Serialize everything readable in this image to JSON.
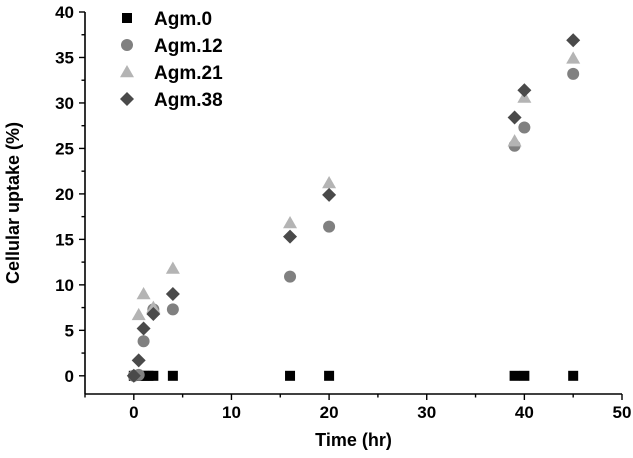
{
  "chart_data": {
    "type": "scatter",
    "xlabel": "Time (hr)",
    "ylabel": "Cellular uptake (%)",
    "xlim": [
      -5,
      50
    ],
    "ylim": [
      -2,
      40
    ],
    "xticks": [
      0,
      10,
      20,
      30,
      40,
      50
    ],
    "yticks": [
      0,
      5,
      10,
      15,
      20,
      25,
      30,
      35,
      40
    ],
    "legend_position": "top-left",
    "grid": false,
    "series": [
      {
        "name": "Agm.0",
        "marker": "square",
        "color": "#000000",
        "points": [
          [
            0,
            0
          ],
          [
            0.5,
            0
          ],
          [
            1,
            0
          ],
          [
            1.5,
            0
          ],
          [
            2,
            0
          ],
          [
            4,
            0
          ],
          [
            16,
            0
          ],
          [
            20,
            0
          ],
          [
            39,
            0
          ],
          [
            40,
            0
          ],
          [
            45,
            0
          ]
        ]
      },
      {
        "name": "Agm.12",
        "marker": "circle",
        "color": "#808080",
        "points": [
          [
            0,
            0
          ],
          [
            0.5,
            0.1
          ],
          [
            1,
            3.8
          ],
          [
            2,
            7.3
          ],
          [
            4,
            7.3
          ],
          [
            16,
            10.9
          ],
          [
            20,
            16.4
          ],
          [
            39,
            25.3
          ],
          [
            40,
            27.3
          ],
          [
            45,
            33.2
          ]
        ]
      },
      {
        "name": "Agm.21",
        "marker": "triangle",
        "color": "#b4b4b4",
        "points": [
          [
            0.5,
            6.7
          ],
          [
            1,
            9.0
          ],
          [
            2,
            7.5
          ],
          [
            4,
            11.8
          ],
          [
            16,
            16.8
          ],
          [
            20,
            21.2
          ],
          [
            39,
            25.8
          ],
          [
            40,
            30.6
          ],
          [
            45,
            34.9
          ]
        ]
      },
      {
        "name": "Agm.38",
        "marker": "diamond",
        "color": "#4a4a4a",
        "points": [
          [
            0,
            0
          ],
          [
            0.5,
            1.7
          ],
          [
            1,
            5.2
          ],
          [
            2,
            6.8
          ],
          [
            4,
            9.0
          ],
          [
            16,
            15.3
          ],
          [
            20,
            19.9
          ],
          [
            39,
            28.4
          ],
          [
            40,
            31.4
          ],
          [
            45,
            36.9
          ]
        ]
      }
    ]
  }
}
